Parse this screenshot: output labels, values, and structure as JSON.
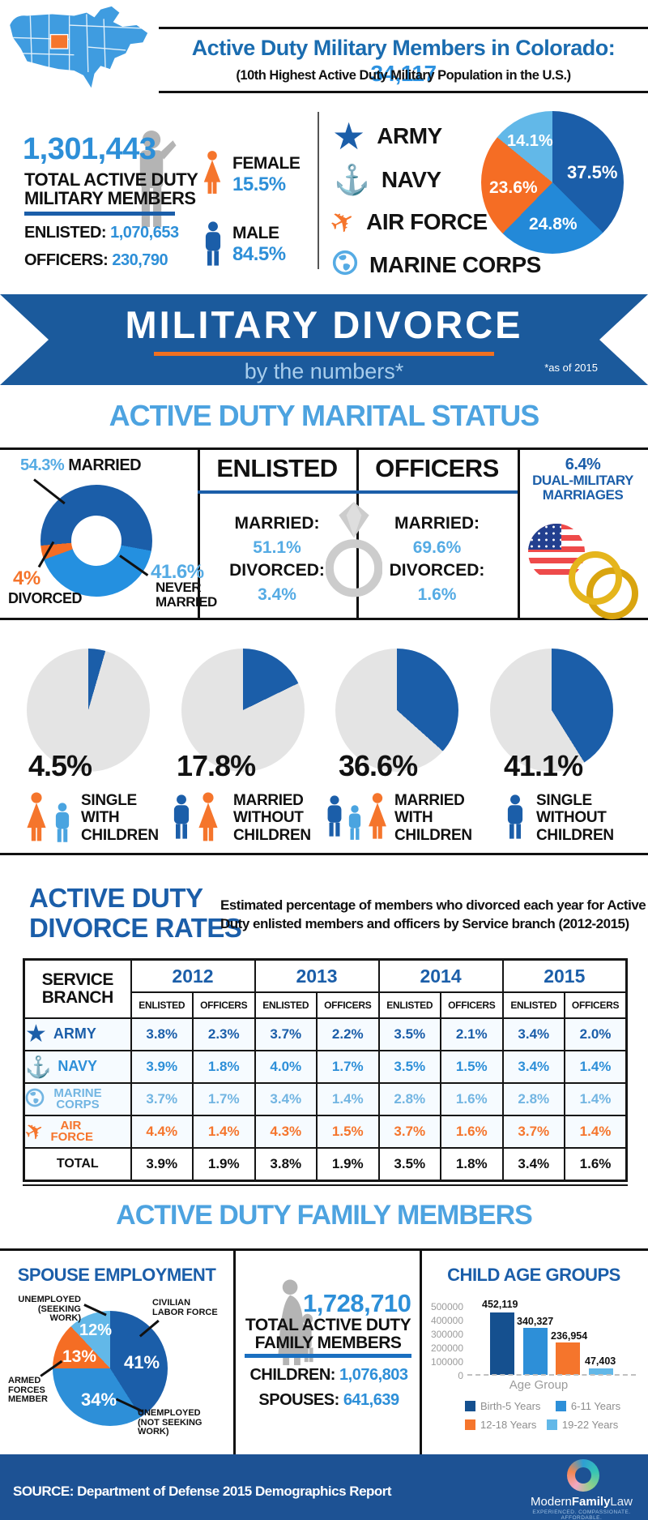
{
  "colors": {
    "dark_blue": "#1b5ea9",
    "medium_blue": "#2d8fd8",
    "light_blue": "#55abe4",
    "pale_blue": "#72b5e2",
    "orange": "#f5752c",
    "banner_blue": "#1b5a9c",
    "footer_blue": "#1d5294",
    "pie_gray": "#e4e4e4",
    "silhouette_gray": "#b4b4b4"
  },
  "header": {
    "title_prefix": "Active Duty Military Members in Colorado: ",
    "title_value": "34,117",
    "subtitle": "(10th Highest Active Duty Military Population in the U.S.)"
  },
  "overview": {
    "total_number": "1,301,443",
    "total_label_line1": "TOTAL ACTIVE DUTY",
    "total_label_line2": "MILITARY MEMBERS",
    "enlisted_label": "ENLISTED:",
    "enlisted_value": "1,070,653",
    "officers_label": "OFFICERS:",
    "officers_value": "230,790",
    "female_label": "FEMALE",
    "female_value": "15.5%",
    "male_label": "MALE",
    "male_value": "84.5%",
    "branch_legend": [
      {
        "label": "ARMY",
        "icon": "star-icon"
      },
      {
        "label": "NAVY",
        "icon": "anchor-icon"
      },
      {
        "label": "AIR FORCE",
        "icon": "jet-icon"
      },
      {
        "label": "MARINE CORPS",
        "icon": "globe-icon"
      }
    ],
    "branch_pie_labels": [
      "37.5%",
      "24.8%",
      "23.6%",
      "14.1%"
    ]
  },
  "banner": {
    "title": "MILITARY DIVORCE",
    "subtitle": "by the numbers*",
    "note": "*as of 2015"
  },
  "marital": {
    "heading": "ACTIVE DUTY MARITAL STATUS",
    "donut": {
      "married_pct": "54.3%",
      "married_word": "MARRIED",
      "divorced_pct": "4%",
      "divorced_word": "DIVORCED",
      "never_pct": "41.6%",
      "never_word1": "NEVER",
      "never_word2": "MARRIED"
    },
    "enlisted": {
      "header": "ENLISTED",
      "married_label": "MARRIED:",
      "married_value": "51.1%",
      "divorced_label": "DIVORCED:",
      "divorced_value": "3.4%"
    },
    "officers": {
      "header": "OFFICERS",
      "married_label": "MARRIED:",
      "married_value": "69.6%",
      "divorced_label": "DIVORCED:",
      "divorced_value": "1.6%"
    },
    "dual": {
      "value": "6.4%",
      "line1": "DUAL-MILITARY",
      "line2": "MARRIAGES"
    }
  },
  "family_pies": [
    {
      "value": "4.5%",
      "lines": [
        "SINGLE",
        "WITH",
        "CHILDREN"
      ]
    },
    {
      "value": "17.8%",
      "lines": [
        "MARRIED",
        "WITHOUT",
        "CHILDREN"
      ]
    },
    {
      "value": "36.6%",
      "lines": [
        "MARRIED",
        "WITH",
        "CHILDREN"
      ]
    },
    {
      "value": "41.1%",
      "lines": [
        "SINGLE",
        "WITHOUT",
        "CHILDREN"
      ]
    }
  ],
  "rates": {
    "title_line1": "ACTIVE DUTY",
    "title_line2": "DIVORCE RATES",
    "desc_line1": "Estimated percentage of members who divorced each year for Active",
    "desc_line2": "Duty enlisted members and officers by Service branch (2012-2015)",
    "table": {
      "corner_line1": "SERVICE",
      "corner_line2": "BRANCH",
      "years": [
        "2012",
        "2013",
        "2014",
        "2015"
      ],
      "sub_enlisted": "ENLISTED",
      "sub_officers": "OFFICERS",
      "rows": [
        {
          "branch": "ARMY",
          "values": [
            "3.8%",
            "2.3%",
            "3.7%",
            "2.2%",
            "3.5%",
            "2.1%",
            "3.4%",
            "2.0%"
          ]
        },
        {
          "branch": "NAVY",
          "values": [
            "3.9%",
            "1.8%",
            "4.0%",
            "1.7%",
            "3.5%",
            "1.5%",
            "3.4%",
            "1.4%"
          ]
        },
        {
          "branch": "MARINE CORPS",
          "values": [
            "3.7%",
            "1.7%",
            "3.4%",
            "1.4%",
            "2.8%",
            "1.6%",
            "2.8%",
            "1.4%"
          ]
        },
        {
          "branch": "AIR FORCE",
          "values": [
            "4.4%",
            "1.4%",
            "4.3%",
            "1.5%",
            "3.7%",
            "1.6%",
            "3.7%",
            "1.4%"
          ]
        },
        {
          "branch": "TOTAL",
          "values": [
            "3.9%",
            "1.9%",
            "3.8%",
            "1.9%",
            "3.5%",
            "1.8%",
            "3.4%",
            "1.6%"
          ]
        }
      ]
    }
  },
  "family": {
    "heading": "ACTIVE DUTY FAMILY MEMBERS",
    "spouse": {
      "title": "SPOUSE EMPLOYMENT",
      "slices": [
        {
          "label_lines": [
            "CIVILIAN",
            "LABOR FORCE"
          ],
          "value": "41%"
        },
        {
          "label_lines": [
            "UNEMPLOYED",
            "(NOT SEEKING WORK)"
          ],
          "value": "34%"
        },
        {
          "label_lines": [
            "ARMED",
            "FORCES",
            "MEMBER"
          ],
          "value": "13%"
        },
        {
          "label_lines": [
            "UNEMPLOYED",
            "(SEEKING WORK)"
          ],
          "value": "12%"
        }
      ]
    },
    "totals": {
      "total": "1,728,710",
      "label_line1": "TOTAL ACTIVE DUTY",
      "label_line2": "FAMILY MEMBERS",
      "children_label": "CHILDREN:",
      "children_value": "1,076,803",
      "spouses_label": "SPOUSES:",
      "spouses_value": "641,639"
    },
    "child_age_groups": {
      "title": "CHILD AGE GROUPS",
      "y_ticks": [
        "500000",
        "400000",
        "300000",
        "200000",
        "100000",
        "0"
      ],
      "xlabel": "Age Group",
      "bar_labels": [
        "452,119",
        "340,327",
        "236,954",
        "47,403"
      ],
      "legend": [
        "Birth-5 Years",
        "6-11 Years",
        "12-18 Years",
        "19-22 Years"
      ]
    }
  },
  "footer": {
    "source": "SOURCE: Department of Defense 2015 Demographics Report",
    "brand_modern": "Modern",
    "brand_family": "Family",
    "brand_law": "Law",
    "tagline": "EXPERIENCED. COMPASSIONATE. AFFORDABLE."
  },
  "chart_data": [
    {
      "type": "pie",
      "title": "Active duty military members by service branch",
      "labels": [
        "Army",
        "Navy",
        "Air Force",
        "Marine Corps"
      ],
      "values": [
        37.5,
        24.8,
        23.6,
        14.1
      ]
    },
    {
      "type": "pie",
      "title": "Active duty marital status",
      "labels": [
        "Married",
        "Never Married",
        "Divorced"
      ],
      "values": [
        54.3,
        41.6,
        4.1
      ],
      "display_values": [
        "54.3%",
        "41.6%",
        "4%"
      ]
    },
    {
      "type": "pie",
      "title": "Active duty family status (share of members)",
      "categories": [
        "Single with children",
        "Married without children",
        "Married with children",
        "Single without children"
      ],
      "values": [
        4.5,
        17.8,
        36.6,
        41.1
      ]
    },
    {
      "type": "pie",
      "title": "Spouse employment",
      "labels": [
        "Civilian labor force",
        "Unemployed (not seeking work)",
        "Armed forces member",
        "Unemployed (seeking work)"
      ],
      "values": [
        41,
        34,
        13,
        12
      ]
    },
    {
      "type": "bar",
      "title": "Child age groups",
      "categories": [
        "Birth-5 Years",
        "6-11 Years",
        "12-18 Years",
        "19-22 Years"
      ],
      "values": [
        452119,
        340327,
        236954,
        47403
      ],
      "xlabel": "Age Group",
      "ylabel": "",
      "ylim": [
        0,
        500000
      ]
    },
    {
      "type": "table",
      "title": "Active duty divorce rates by service branch (2012-2015)",
      "columns": [
        "Branch",
        "2012 Enlisted",
        "2012 Officers",
        "2013 Enlisted",
        "2013 Officers",
        "2014 Enlisted",
        "2014 Officers",
        "2015 Enlisted",
        "2015 Officers"
      ],
      "rows": [
        [
          "Army",
          3.8,
          2.3,
          3.7,
          2.2,
          3.5,
          2.1,
          3.4,
          2.0
        ],
        [
          "Navy",
          3.9,
          1.8,
          4.0,
          1.7,
          3.5,
          1.5,
          3.4,
          1.4
        ],
        [
          "Marine Corps",
          3.7,
          1.7,
          3.4,
          1.4,
          2.8,
          1.6,
          2.8,
          1.4
        ],
        [
          "Air Force",
          4.4,
          1.4,
          4.3,
          1.5,
          3.7,
          1.6,
          3.7,
          1.4
        ],
        [
          "Total",
          3.9,
          1.9,
          3.8,
          1.9,
          3.5,
          1.8,
          3.4,
          1.6
        ]
      ]
    }
  ]
}
